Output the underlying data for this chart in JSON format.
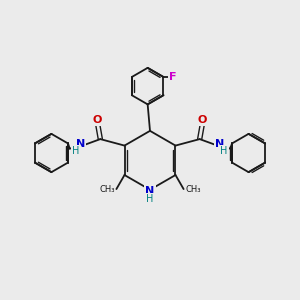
{
  "bg_color": "#ebebeb",
  "bond_color": "#1a1a1a",
  "N_color": "#0000cc",
  "O_color": "#cc0000",
  "F_color": "#cc00cc",
  "NH_color": "#008080",
  "figsize": [
    3.0,
    3.0
  ],
  "dpi": 100,
  "xlim": [
    0,
    10
  ],
  "ylim": [
    0,
    10
  ]
}
